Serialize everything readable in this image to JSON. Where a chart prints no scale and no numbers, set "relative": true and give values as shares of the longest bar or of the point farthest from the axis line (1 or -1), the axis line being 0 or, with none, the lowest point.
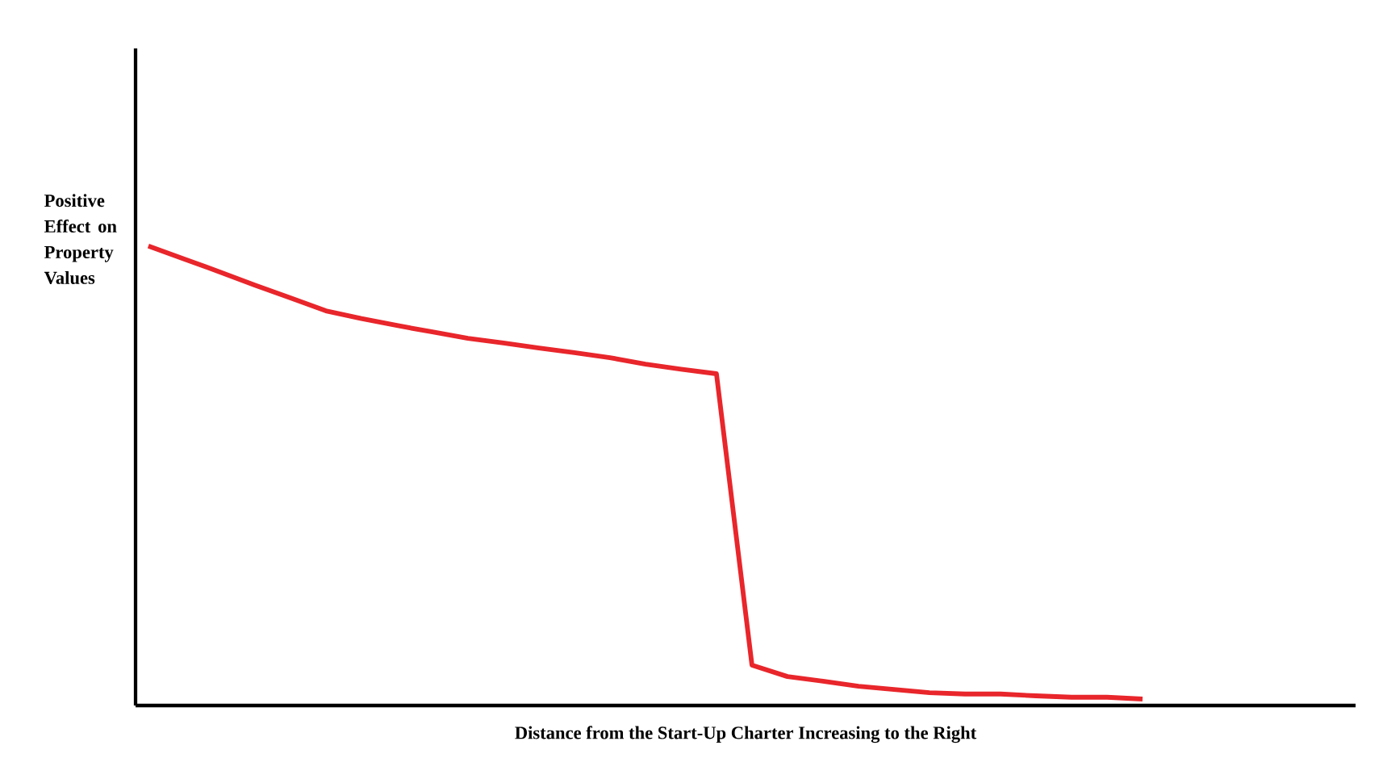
{
  "chart_data": {
    "type": "line",
    "relative": true,
    "xlabel": "Distance from the Start-Up Charter Increasing to the Right",
    "ylabel": "Positive Effect on Property Values",
    "categories": [
      null,
      null,
      null,
      null,
      null,
      null,
      null,
      null,
      null,
      null,
      null,
      null,
      null,
      null,
      null,
      null,
      null,
      null,
      null,
      null,
      null,
      null,
      null,
      null,
      null,
      null,
      null,
      null,
      null
    ],
    "values": [
      1,
      0.972,
      0.944,
      0.915,
      0.887,
      0.859,
      0.842,
      0.827,
      0.813,
      0.799,
      0.789,
      0.778,
      0.768,
      0.757,
      0.743,
      0.732,
      0.722,
      0.088,
      0.063,
      0.053,
      0.042,
      0.035,
      0.028,
      0.025,
      0.025,
      0.021,
      0.018,
      0.018,
      0.014
    ],
    "color": "#e8262b"
  }
}
